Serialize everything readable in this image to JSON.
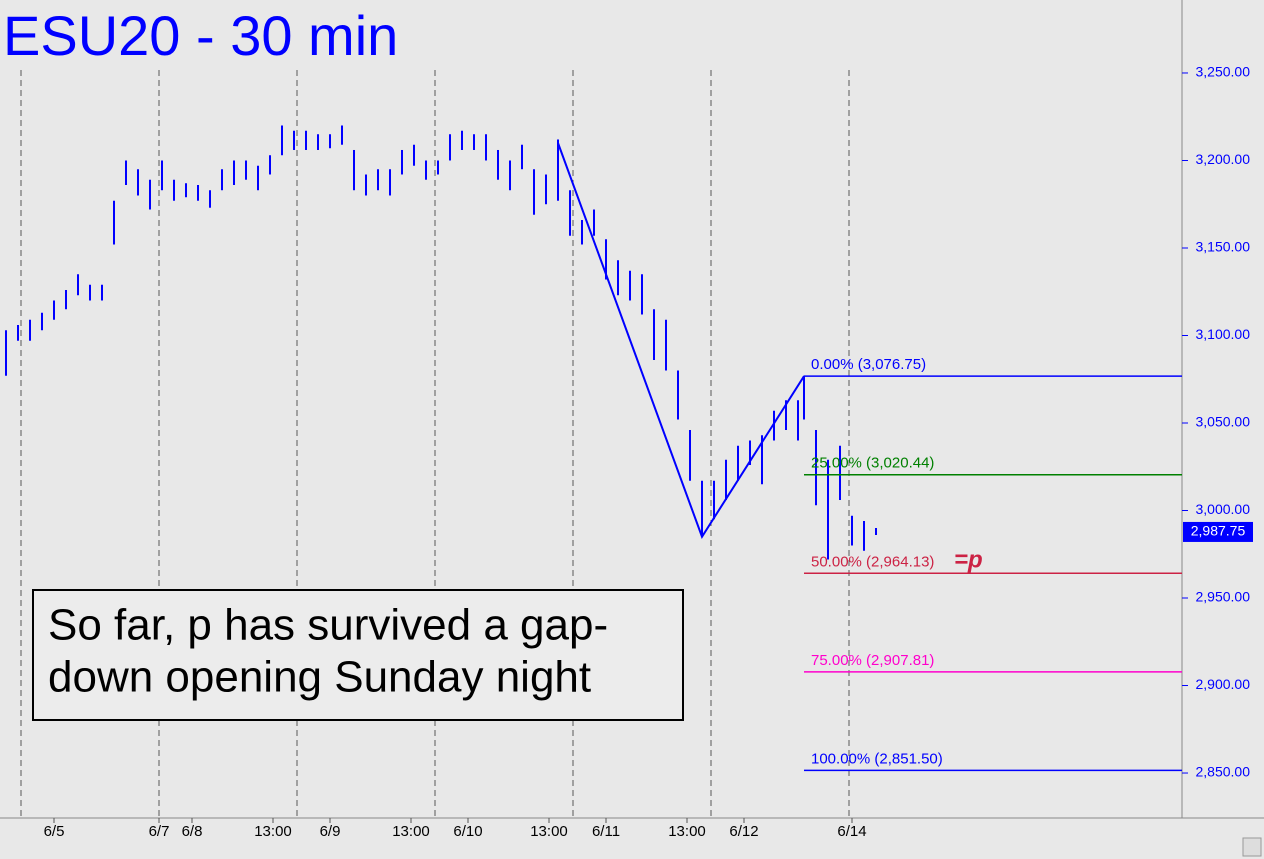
{
  "chart_data": {
    "type": "range-bar",
    "title": "ESU20 - 30 min",
    "color": "#0000ff",
    "xlim": [
      0,
      394
    ],
    "ylim": [
      2824.3,
      3291.7
    ],
    "yticks": [
      {
        "value": 3250,
        "label": "3,250.00"
      },
      {
        "value": 3200,
        "label": "3,200.00"
      },
      {
        "value": 3150,
        "label": "3,150.00"
      },
      {
        "value": 3100,
        "label": "3,100.00"
      },
      {
        "value": 3050,
        "label": "3,050.00"
      },
      {
        "value": 3000,
        "label": "3,000.00"
      },
      {
        "value": 2950,
        "label": "2,950.00"
      },
      {
        "value": 2900,
        "label": "2,900.00"
      },
      {
        "value": 2850,
        "label": "2,850.00"
      }
    ],
    "xticks": [
      {
        "value": 18,
        "label": "6/5"
      },
      {
        "value": 53,
        "label": "6/7"
      },
      {
        "value": 64,
        "label": "6/8"
      },
      {
        "value": 91,
        "label": "13:00"
      },
      {
        "value": 110,
        "label": "6/9"
      },
      {
        "value": 137,
        "label": "13:00"
      },
      {
        "value": 156,
        "label": "6/10"
      },
      {
        "value": 183,
        "label": "13:00"
      },
      {
        "value": 202,
        "label": "6/11"
      },
      {
        "value": 229,
        "label": "13:00"
      },
      {
        "value": 248,
        "label": "6/12"
      },
      {
        "value": 284,
        "label": "6/14"
      }
    ],
    "separators": [
      7,
      53,
      99,
      145,
      191,
      237,
      283
    ],
    "x": [
      2,
      6,
      10,
      14,
      18,
      22,
      26,
      30,
      34,
      38,
      42,
      46,
      50,
      54,
      58,
      62,
      66,
      70,
      74,
      78,
      82,
      86,
      90,
      94,
      98,
      102,
      106,
      110,
      114,
      118,
      122,
      126,
      130,
      134,
      138,
      142,
      146,
      150,
      154,
      158,
      162,
      166,
      170,
      174,
      178,
      182,
      186,
      190,
      194,
      198,
      202,
      206,
      210,
      214,
      218,
      222,
      226,
      230,
      234,
      238,
      242,
      246,
      250,
      254,
      258,
      262,
      266,
      268,
      272,
      276,
      280,
      284,
      288,
      292
    ],
    "high": [
      3103,
      3106,
      3109,
      3113,
      3120,
      3126,
      3135,
      3129,
      3129,
      3177,
      3200,
      3195,
      3189,
      3200,
      3189,
      3187,
      3186,
      3183,
      3195,
      3200,
      3200,
      3197,
      3203,
      3220,
      3217,
      3217,
      3215,
      3215,
      3220,
      3206,
      3192,
      3195,
      3195,
      3206,
      3209,
      3200,
      3200,
      3215,
      3217,
      3215,
      3215,
      3206,
      3200,
      3209,
      3195,
      3192,
      3212,
      3183,
      3166,
      3172,
      3155,
      3143,
      3137,
      3135,
      3115,
      3109,
      3080,
      3046,
      3017,
      3017,
      3029,
      3037,
      3040,
      3043,
      3057,
      3063,
      3063,
      3077,
      3046,
      3029,
      3037,
      2997,
      2994,
      2990
    ],
    "low": [
      3077,
      3097,
      3097,
      3103,
      3109,
      3115,
      3123,
      3120,
      3120,
      3152,
      3186,
      3180,
      3172,
      3183,
      3177,
      3179,
      3177,
      3173,
      3183,
      3186,
      3189,
      3183,
      3192,
      3203,
      3206,
      3206,
      3206,
      3207,
      3209,
      3183,
      3180,
      3183,
      3180,
      3192,
      3197,
      3189,
      3192,
      3200,
      3206,
      3206,
      3200,
      3189,
      3183,
      3195,
      3169,
      3175,
      3177,
      3157,
      3152,
      3157,
      3132,
      3123,
      3120,
      3112,
      3086,
      3080,
      3052,
      3017,
      2986,
      2995,
      3006,
      3017,
      3026,
      3015,
      3040,
      3046,
      3040,
      3052,
      3003,
      2972,
      3006,
      2980,
      2977,
      2986
    ],
    "trendline": {
      "x": [
        186,
        234,
        268
      ],
      "values": [
        3210,
        2985,
        3076.75
      ]
    },
    "fib_start": 268,
    "fib_levels": [
      {
        "label": "0.00% (3,076.75)",
        "value": 3076.75,
        "color": "#0000ff"
      },
      {
        "label": "25.00% (3,020.44)",
        "value": 3020.44,
        "color": "#008000"
      },
      {
        "label": "50.00% (2,964.13)",
        "value": 2964.13,
        "color": "#cc2244"
      },
      {
        "label": "75.00% (2,907.81)",
        "value": 2907.81,
        "color": "#ff00cc"
      },
      {
        "label": "100.00% (2,851.50)",
        "value": 2851.5,
        "color": "#0000ff"
      }
    ],
    "p_label": "=p",
    "last_price": {
      "value": 2987.75,
      "label": "2,987.75"
    },
    "annotation": [
      "So far, p has survived a gap-",
      "down opening Sunday night"
    ]
  }
}
